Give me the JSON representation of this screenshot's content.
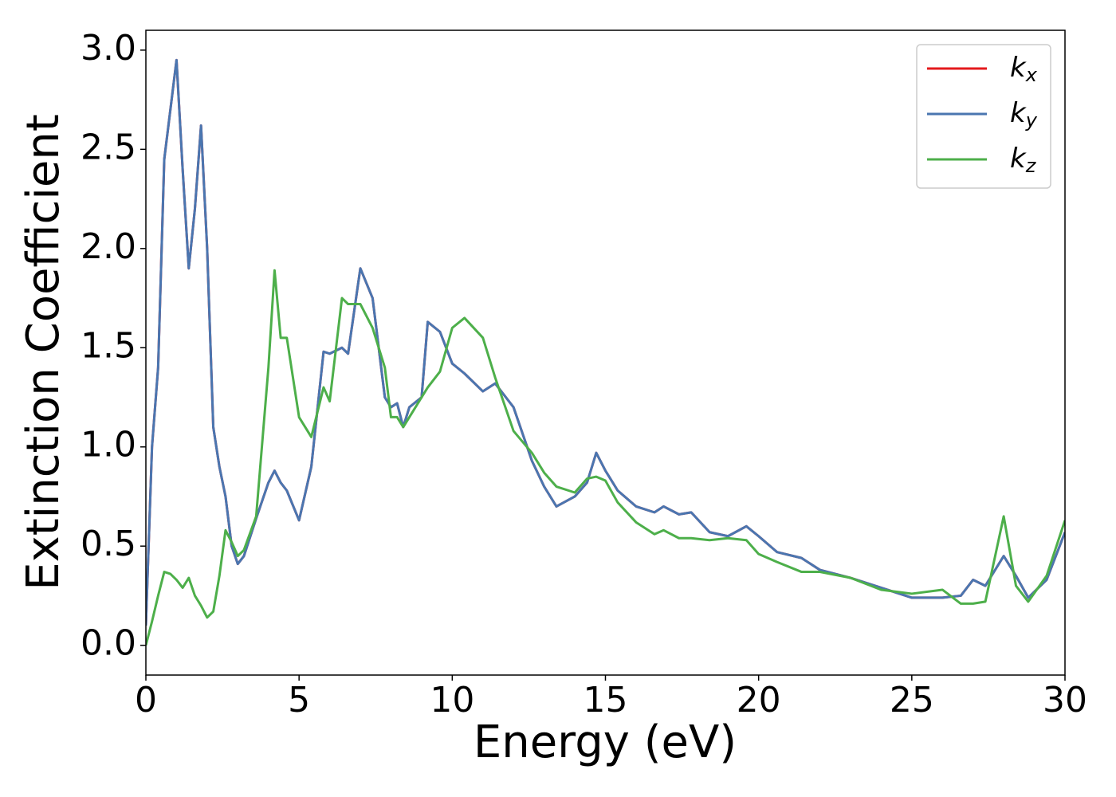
{
  "chart_data": {
    "type": "line",
    "xlabel": "Energy (eV)",
    "ylabel": "Extinction Coefficient",
    "x": [
      0,
      0.2,
      0.4,
      0.6,
      0.8,
      1.0,
      1.2,
      1.4,
      1.6,
      1.8,
      2.0,
      2.2,
      2.4,
      2.6,
      2.8,
      3.0,
      3.2,
      3.6,
      4.0,
      4.2,
      4.4,
      4.6,
      5.0,
      5.4,
      5.8,
      6.0,
      6.4,
      6.6,
      7.0,
      7.4,
      7.8,
      8.0,
      8.2,
      8.4,
      8.6,
      9.0,
      9.2,
      9.6,
      10.0,
      10.4,
      11.0,
      11.4,
      12.0,
      12.6,
      13.0,
      13.4,
      14.0,
      14.4,
      14.7,
      15.0,
      15.4,
      16.0,
      16.6,
      16.9,
      17.4,
      17.8,
      18.4,
      19.0,
      19.6,
      20.0,
      20.6,
      21.4,
      22.0,
      23.0,
      24.0,
      25.0,
      26.0,
      26.6,
      27.0,
      27.4,
      28.0,
      28.4,
      28.8,
      29.4,
      30.0
    ],
    "series": [
      {
        "name": "kx",
        "color": "#e41a1c",
        "values": [
          0.1,
          1.0,
          1.4,
          2.45,
          2.7,
          2.95,
          2.4,
          1.9,
          2.2,
          2.62,
          2.0,
          1.1,
          0.9,
          0.75,
          0.5,
          0.41,
          0.45,
          0.64,
          0.82,
          0.88,
          0.82,
          0.78,
          0.63,
          0.9,
          1.48,
          1.47,
          1.5,
          1.47,
          1.9,
          1.75,
          1.25,
          1.2,
          1.22,
          1.1,
          1.2,
          1.25,
          1.63,
          1.58,
          1.42,
          1.37,
          1.28,
          1.32,
          1.2,
          0.93,
          0.8,
          0.7,
          0.75,
          0.82,
          0.97,
          0.88,
          0.78,
          0.7,
          0.67,
          0.7,
          0.66,
          0.67,
          0.57,
          0.55,
          0.6,
          0.55,
          0.47,
          0.44,
          0.38,
          0.34,
          0.29,
          0.24,
          0.24,
          0.25,
          0.33,
          0.3,
          0.45,
          0.35,
          0.24,
          0.33,
          0.57
        ]
      },
      {
        "name": "ky",
        "color": "#4a76b0",
        "values": [
          0.1,
          1.0,
          1.4,
          2.45,
          2.7,
          2.95,
          2.4,
          1.9,
          2.2,
          2.62,
          2.0,
          1.1,
          0.9,
          0.75,
          0.5,
          0.41,
          0.45,
          0.64,
          0.82,
          0.88,
          0.82,
          0.78,
          0.63,
          0.9,
          1.48,
          1.47,
          1.5,
          1.47,
          1.9,
          1.75,
          1.25,
          1.2,
          1.22,
          1.1,
          1.2,
          1.25,
          1.63,
          1.58,
          1.42,
          1.37,
          1.28,
          1.32,
          1.2,
          0.93,
          0.8,
          0.7,
          0.75,
          0.82,
          0.97,
          0.88,
          0.78,
          0.7,
          0.67,
          0.7,
          0.66,
          0.67,
          0.57,
          0.55,
          0.6,
          0.55,
          0.47,
          0.44,
          0.38,
          0.34,
          0.29,
          0.24,
          0.24,
          0.25,
          0.33,
          0.3,
          0.45,
          0.35,
          0.24,
          0.33,
          0.57
        ]
      },
      {
        "name": "kz",
        "color": "#4daf4a",
        "values": [
          0.0,
          0.12,
          0.25,
          0.37,
          0.36,
          0.33,
          0.29,
          0.34,
          0.25,
          0.2,
          0.14,
          0.17,
          0.35,
          0.58,
          0.52,
          0.45,
          0.48,
          0.65,
          1.4,
          1.89,
          1.55,
          1.55,
          1.15,
          1.05,
          1.3,
          1.23,
          1.75,
          1.72,
          1.72,
          1.6,
          1.4,
          1.15,
          1.15,
          1.1,
          1.15,
          1.25,
          1.3,
          1.38,
          1.6,
          1.65,
          1.55,
          1.35,
          1.08,
          0.97,
          0.87,
          0.8,
          0.77,
          0.84,
          0.85,
          0.83,
          0.72,
          0.62,
          0.56,
          0.58,
          0.54,
          0.54,
          0.53,
          0.54,
          0.53,
          0.46,
          0.42,
          0.37,
          0.37,
          0.34,
          0.28,
          0.26,
          0.28,
          0.21,
          0.21,
          0.22,
          0.65,
          0.3,
          0.22,
          0.35,
          0.63
        ]
      }
    ],
    "xlim": [
      0,
      30
    ],
    "xticks": [
      0,
      5,
      10,
      15,
      20,
      25,
      30
    ],
    "ylim": [
      -0.15,
      3.1
    ],
    "yticks": [
      {
        "value": 0,
        "label": "0.0"
      },
      {
        "value": 0.5,
        "label": "0.5"
      },
      {
        "value": 1,
        "label": "1.0"
      },
      {
        "value": 1.5,
        "label": "1.5"
      },
      {
        "value": 2,
        "label": "2.0"
      },
      {
        "value": 2.5,
        "label": "2.5"
      },
      {
        "value": 3,
        "label": "3.0"
      }
    ],
    "legend": "upper right"
  }
}
